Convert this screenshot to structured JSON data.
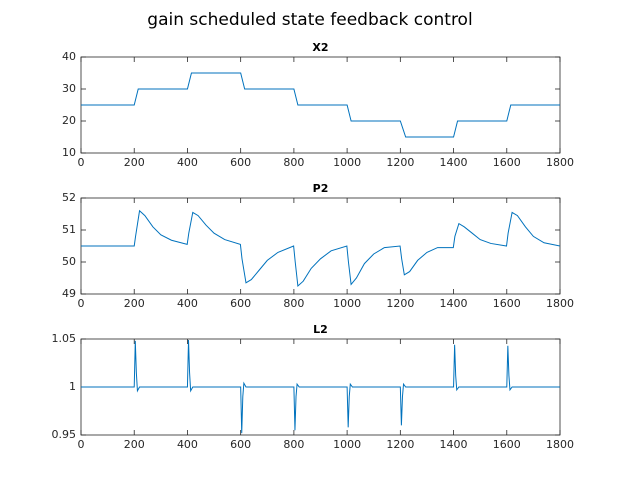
{
  "title": "gain scheduled state feedback control",
  "chart_data": [
    {
      "type": "line",
      "title": "X2",
      "color": "#0072bd",
      "x": [
        0,
        200,
        215,
        400,
        415,
        600,
        615,
        800,
        815,
        1000,
        1015,
        1200,
        1220,
        1400,
        1415,
        1600,
        1615,
        1800
      ],
      "values": [
        25,
        25,
        30,
        30,
        35,
        35,
        30,
        30,
        25,
        25,
        20,
        20,
        15,
        15,
        20,
        20,
        25,
        25
      ],
      "xlim": [
        0,
        1800
      ],
      "xticks": [
        0,
        200,
        400,
        600,
        800,
        1000,
        1200,
        1400,
        1600,
        1800
      ],
      "ylim": [
        10,
        40
      ],
      "yticks": [
        10,
        20,
        30,
        40
      ]
    },
    {
      "type": "line",
      "title": "P2",
      "color": "#0072bd",
      "x": [
        0,
        200,
        205,
        220,
        240,
        270,
        300,
        340,
        399,
        405,
        420,
        440,
        470,
        500,
        540,
        599,
        605,
        620,
        640,
        670,
        700,
        740,
        799,
        805,
        815,
        835,
        865,
        900,
        940,
        999,
        1005,
        1015,
        1035,
        1065,
        1100,
        1140,
        1199,
        1205,
        1215,
        1235,
        1265,
        1300,
        1340,
        1399,
        1405,
        1420,
        1440,
        1470,
        1500,
        1540,
        1599,
        1605,
        1620,
        1640,
        1670,
        1700,
        1740,
        1800
      ],
      "values": [
        50.5,
        50.5,
        50.8,
        51.6,
        51.45,
        51.1,
        50.85,
        50.68,
        50.55,
        50.9,
        51.55,
        51.45,
        51.15,
        50.9,
        50.7,
        50.55,
        50.1,
        49.35,
        49.45,
        49.75,
        50.05,
        50.3,
        50.5,
        50,
        49.25,
        49.4,
        49.8,
        50.1,
        50.35,
        50.5,
        50,
        49.3,
        49.5,
        49.95,
        50.25,
        50.45,
        50.5,
        50.1,
        49.6,
        49.7,
        50.05,
        50.3,
        50.45,
        50.45,
        50.8,
        51.2,
        51.1,
        50.9,
        50.7,
        50.58,
        50.5,
        50.9,
        51.55,
        51.45,
        51.1,
        50.8,
        50.6,
        50.5
      ],
      "xlim": [
        0,
        1800
      ],
      "xticks": [
        0,
        200,
        400,
        600,
        800,
        1000,
        1200,
        1400,
        1600,
        1800
      ],
      "ylim": [
        49,
        52
      ],
      "yticks": [
        49,
        50,
        51,
        52
      ]
    },
    {
      "type": "line",
      "title": "L2",
      "color": "#0072bd",
      "x": [
        0,
        200,
        204,
        208,
        212,
        220,
        400,
        404,
        408,
        412,
        420,
        600,
        604,
        608,
        612,
        620,
        800,
        804,
        808,
        812,
        820,
        1000,
        1004,
        1008,
        1012,
        1020,
        1200,
        1204,
        1208,
        1212,
        1220,
        1400,
        1404,
        1408,
        1412,
        1420,
        1600,
        1604,
        1608,
        1612,
        1620,
        1800
      ],
      "values": [
        1,
        1,
        1.048,
        1.015,
        0.996,
        1,
        1,
        1.049,
        1.015,
        0.996,
        1,
        1,
        0.952,
        0.99,
        1.004,
        1,
        1,
        0.955,
        0.99,
        1.003,
        1,
        1,
        0.958,
        0.99,
        1.003,
        1,
        1,
        0.96,
        0.99,
        1.003,
        1,
        1,
        1.044,
        1.012,
        0.997,
        1,
        1,
        1.043,
        1.012,
        0.997,
        1,
        1
      ],
      "xlim": [
        0,
        1800
      ],
      "xticks": [
        0,
        200,
        400,
        600,
        800,
        1000,
        1200,
        1400,
        1600,
        1800
      ],
      "ylim": [
        0.95,
        1.05
      ],
      "yticks": [
        0.95,
        1,
        1.05
      ]
    }
  ]
}
